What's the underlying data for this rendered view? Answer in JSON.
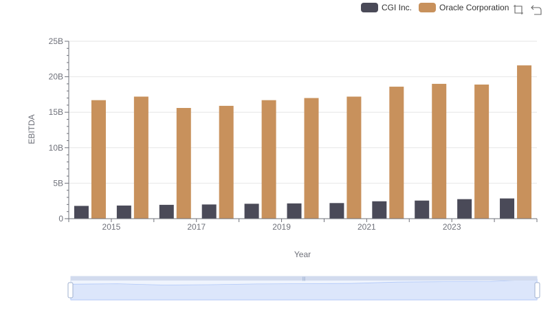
{
  "legend": {
    "series_a": "CGI Inc.",
    "series_b": "Oracle Corporation"
  },
  "colors": {
    "series_a": "#4a4a58",
    "series_b": "#c8915c",
    "grid": "#e6e6e6",
    "slider_fill": "#dce6fb",
    "slider_line": "#8fb0f7"
  },
  "toolbox_icons": [
    "zoom-icon",
    "restore-icon"
  ],
  "chart_data": {
    "type": "bar",
    "xlabel": "Year",
    "ylabel": "EBITDA",
    "ylim": [
      0,
      25000000000
    ],
    "yticks": [
      "0",
      "5B",
      "10B",
      "15B",
      "20B",
      "25B"
    ],
    "xtick_labels": [
      "2015",
      "2017",
      "2019",
      "2021",
      "2023"
    ],
    "categories": [
      "2014",
      "2015",
      "2016",
      "2017",
      "2018",
      "2019",
      "2020",
      "2021",
      "2022",
      "2023",
      "2024"
    ],
    "series": [
      {
        "name": "CGI Inc.",
        "values": [
          1800000000,
          1850000000,
          1950000000,
          2000000000,
          2100000000,
          2150000000,
          2200000000,
          2450000000,
          2550000000,
          2750000000,
          2850000000
        ]
      },
      {
        "name": "Oracle Corporation",
        "values": [
          16700000000,
          17200000000,
          15600000000,
          15900000000,
          16700000000,
          17000000000,
          17200000000,
          18600000000,
          19000000000,
          18900000000,
          21600000000
        ]
      }
    ]
  }
}
